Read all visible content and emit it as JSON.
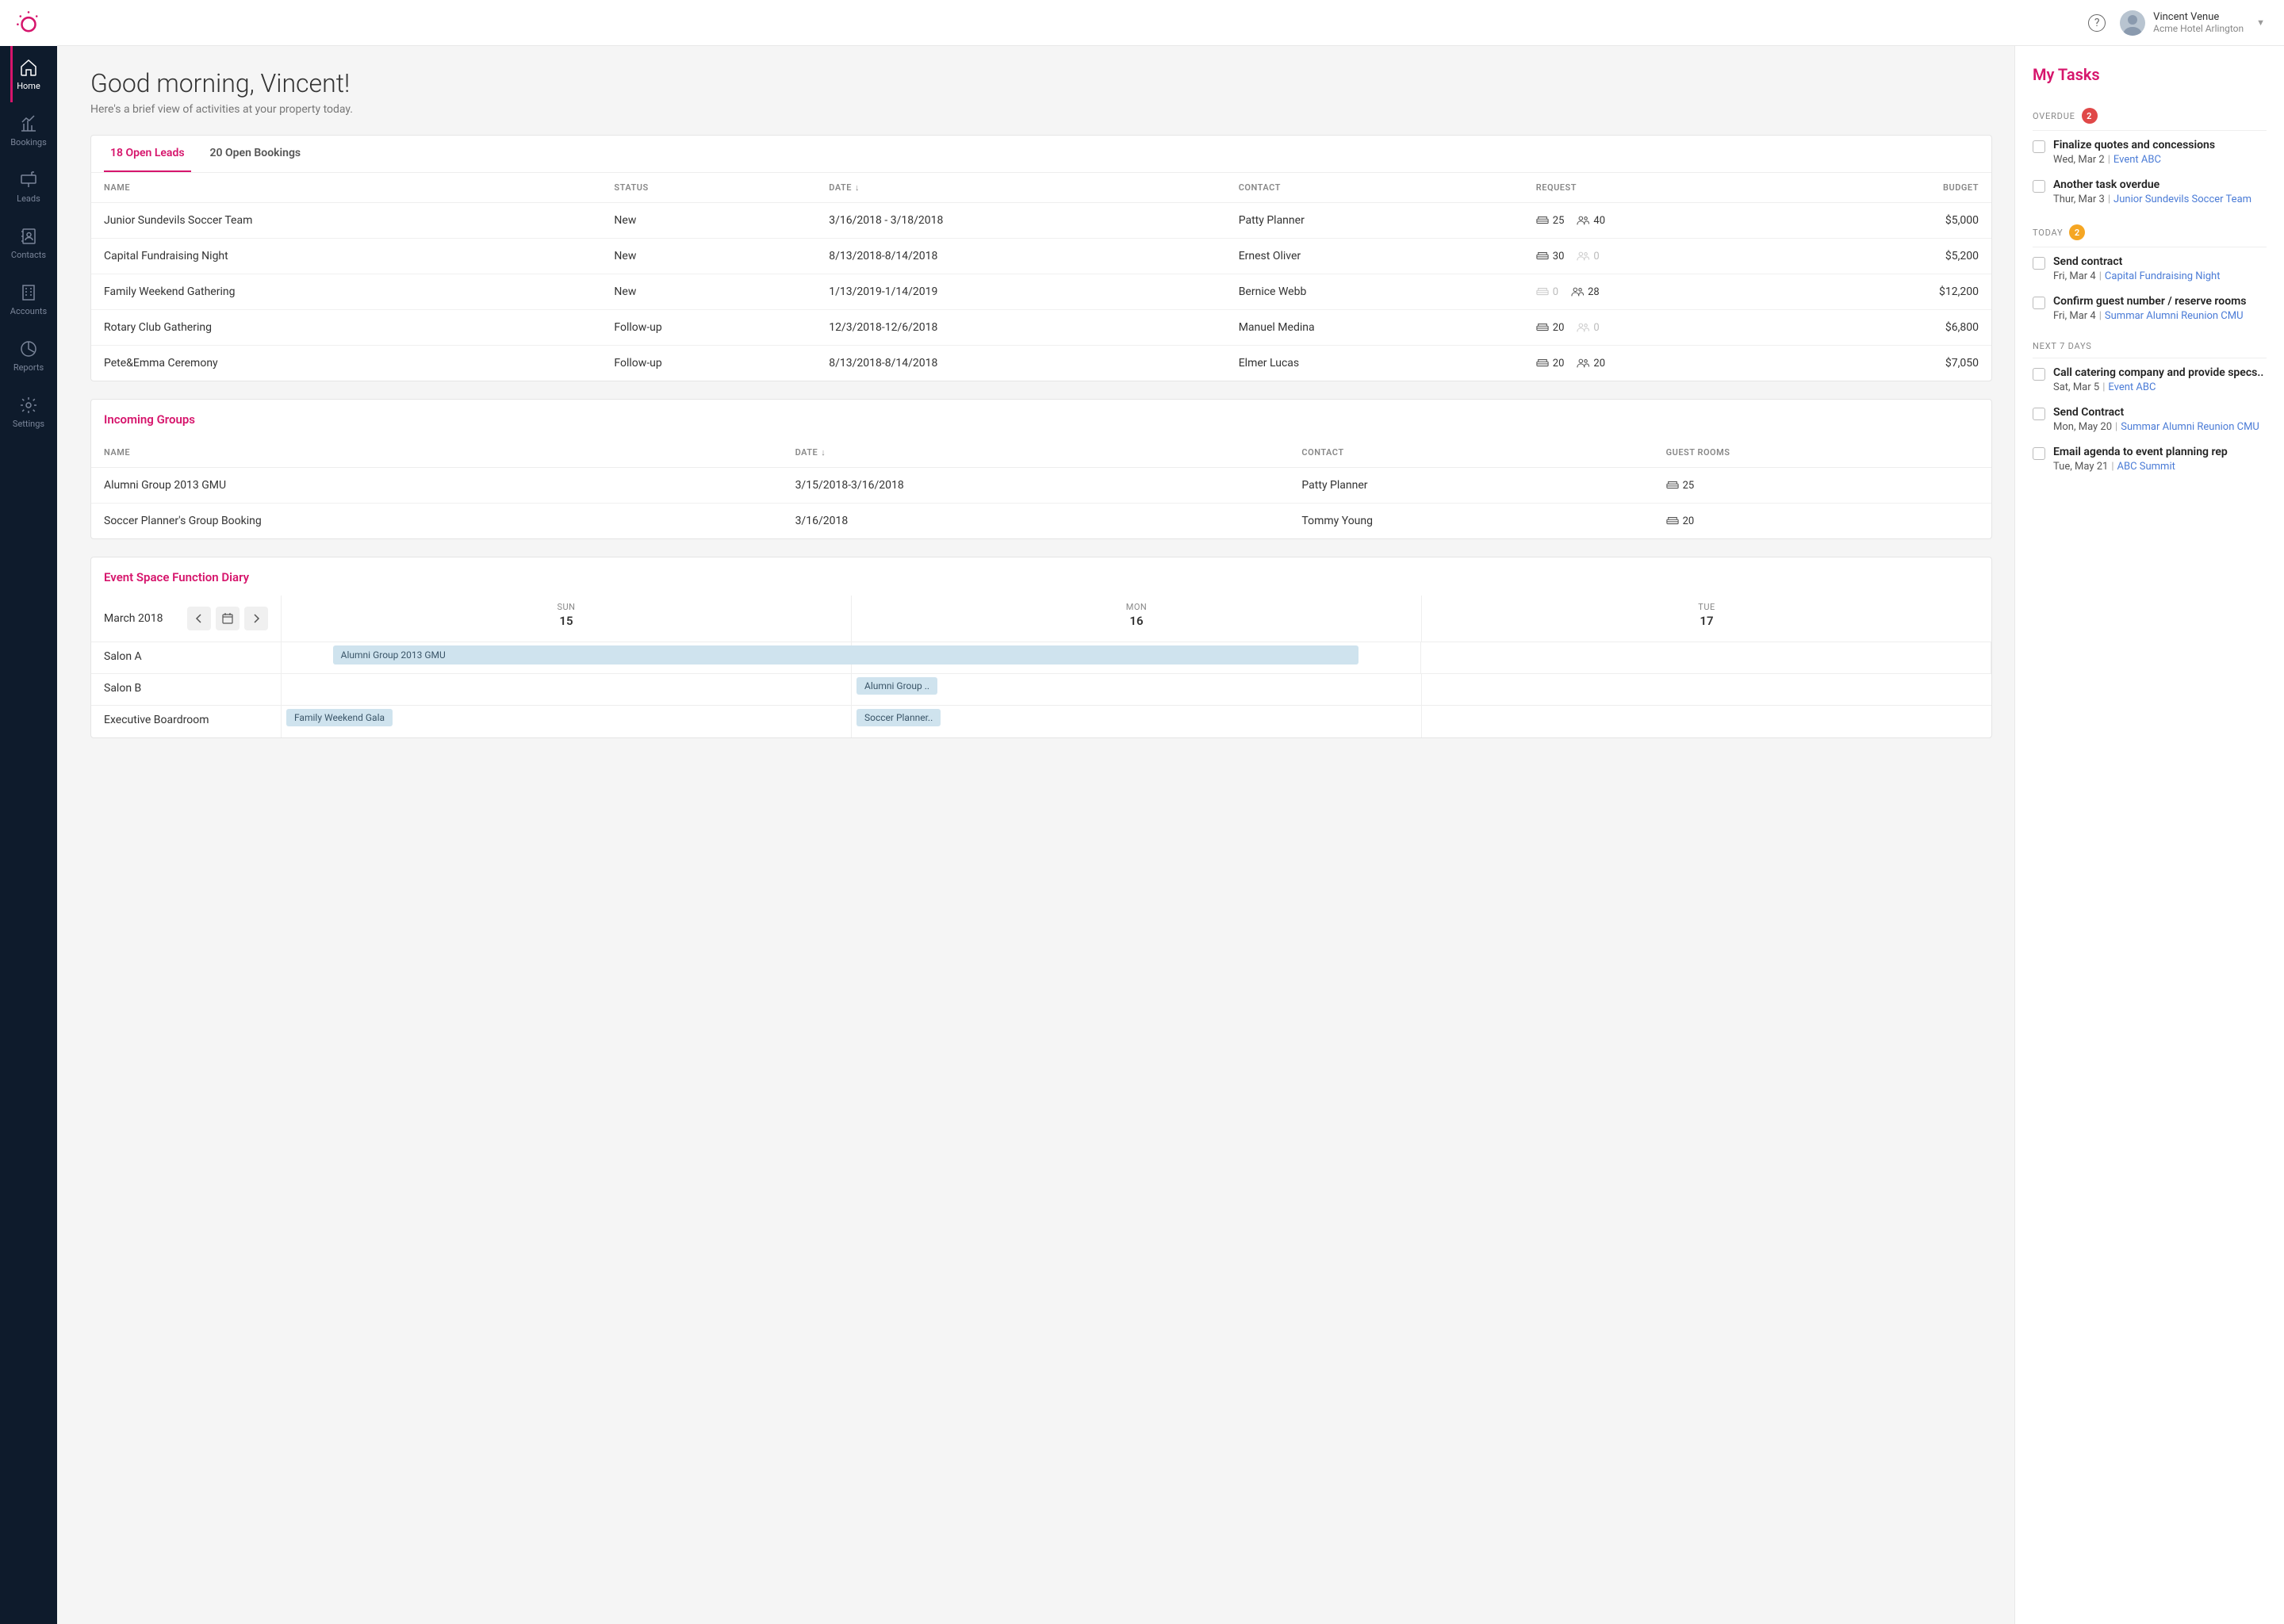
{
  "colors": {
    "accent": "#d6156c",
    "sidebar_bg": "#0e1b2c",
    "link": "#4a7bd6",
    "badge_red": "#e04848",
    "badge_orange": "#f5a623",
    "pill_bg": "#cfe3ee"
  },
  "user": {
    "name": "Vincent Venue",
    "property": "Acme Hotel Arlington"
  },
  "nav": [
    {
      "label": "Home",
      "icon": "home",
      "active": true
    },
    {
      "label": "Bookings",
      "icon": "chart",
      "active": false
    },
    {
      "label": "Leads",
      "icon": "mailbox",
      "active": false
    },
    {
      "label": "Contacts",
      "icon": "addressbook",
      "active": false
    },
    {
      "label": "Accounts",
      "icon": "building",
      "active": false
    },
    {
      "label": "Reports",
      "icon": "piechart",
      "active": false
    },
    {
      "label": "Settings",
      "icon": "gear",
      "active": false
    }
  ],
  "greeting": {
    "title": "Good morning, Vincent!",
    "subtitle": "Here's a brief view of activities at your property today."
  },
  "leads_card": {
    "tabs": [
      {
        "label": "18 Open Leads",
        "active": true
      },
      {
        "label": "20 Open Bookings",
        "active": false
      }
    ],
    "columns": [
      "NAME",
      "STATUS",
      "DATE",
      "CONTACT",
      "REQUEST",
      "BUDGET"
    ],
    "sort_col": "DATE",
    "rows": [
      {
        "name": "Junior Sundevils Soccer Team",
        "status": "New",
        "date": "3/16/2018 - 3/18/2018",
        "contact": "Patty Planner",
        "rooms": "25",
        "rooms_muted": false,
        "guests": "40",
        "guests_muted": false,
        "budget": "$5,000"
      },
      {
        "name": "Capital Fundraising Night",
        "status": "New",
        "date": "8/13/2018-8/14/2018",
        "contact": "Ernest Oliver",
        "rooms": "30",
        "rooms_muted": false,
        "guests": "0",
        "guests_muted": true,
        "budget": "$5,200"
      },
      {
        "name": "Family Weekend Gathering",
        "status": "New",
        "date": "1/13/2019-1/14/2019",
        "contact": "Bernice Webb",
        "rooms": "0",
        "rooms_muted": true,
        "guests": "28",
        "guests_muted": false,
        "budget": "$12,200"
      },
      {
        "name": "Rotary Club Gathering",
        "status": "Follow-up",
        "date": "12/3/2018-12/6/2018",
        "contact": "Manuel Medina",
        "rooms": "20",
        "rooms_muted": false,
        "guests": "0",
        "guests_muted": true,
        "budget": "$6,800"
      },
      {
        "name": "Pete&Emma Ceremony",
        "status": "Follow-up",
        "date": "8/13/2018-8/14/2018",
        "contact": "Elmer Lucas",
        "rooms": "20",
        "rooms_muted": false,
        "guests": "20",
        "guests_muted": false,
        "budget": "$7,050"
      }
    ]
  },
  "groups_card": {
    "title": "Incoming Groups",
    "columns": [
      "NAME",
      "DATE",
      "CONTACT",
      "GUEST ROOMS"
    ],
    "sort_col": "DATE",
    "rows": [
      {
        "name": "Alumni Group 2013 GMU",
        "date": "3/15/2018-3/16/2018",
        "contact": "Patty Planner",
        "rooms": "25"
      },
      {
        "name": "Soccer Planner's Group Booking",
        "date": "3/16/2018",
        "contact": "Tommy Young",
        "rooms": "20"
      }
    ]
  },
  "diary": {
    "title": "Event Space Function Diary",
    "month": "March 2018",
    "days": [
      {
        "dow": "SUN",
        "dom": "15"
      },
      {
        "dow": "MON",
        "dom": "16"
      },
      {
        "dow": "TUE",
        "dom": "17"
      }
    ],
    "rooms": [
      {
        "name": "Salon A",
        "events": [
          {
            "label": "Alumni Group 2013 GMU",
            "span": true,
            "start": 0,
            "end": 1.8
          }
        ]
      },
      {
        "name": "Salon B",
        "events": [
          {
            "label": "Alumni Group ..",
            "span": false,
            "col": 1
          }
        ]
      },
      {
        "name": "Executive Boardroom",
        "events": [
          {
            "label": "Family Weekend Gala",
            "span": false,
            "col": 0
          },
          {
            "label": "Soccer Planner..",
            "span": false,
            "col": 1
          }
        ]
      }
    ]
  },
  "tasks": {
    "title": "My Tasks",
    "sections": [
      {
        "label": "OVERDUE",
        "badge": "2",
        "badge_color": "red",
        "items": [
          {
            "title": "Finalize quotes and concessions",
            "date": "Wed, Mar 2",
            "link": "Event ABC"
          },
          {
            "title": "Another task overdue",
            "date": "Thur, Mar 3",
            "link": "Junior Sundevils Soccer Team"
          }
        ]
      },
      {
        "label": "TODAY",
        "badge": "2",
        "badge_color": "orange",
        "items": [
          {
            "title": "Send contract",
            "date": "Fri, Mar 4",
            "link": "Capital Fundraising Night"
          },
          {
            "title": "Confirm guest number / reserve rooms",
            "date": "Fri, Mar 4",
            "link": "Summar Alumni Reunion CMU"
          }
        ]
      },
      {
        "label": "NEXT 7 DAYS",
        "badge": null,
        "items": [
          {
            "title": "Call catering company and provide specs..",
            "date": "Sat, Mar 5",
            "link": "Event ABC"
          },
          {
            "title": "Send Contract",
            "date": "Mon, May 20",
            "link": "Summar Alumni Reunion CMU"
          },
          {
            "title": "Email agenda to event planning rep",
            "date": "Tue, May 21",
            "link": "ABC Summit"
          }
        ]
      }
    ]
  }
}
